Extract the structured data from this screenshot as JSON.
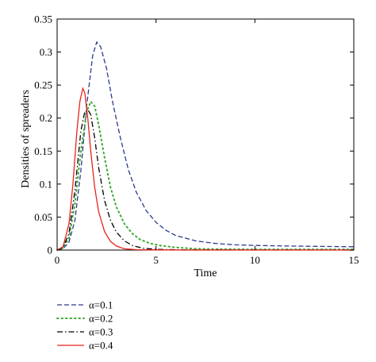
{
  "chart_data": {
    "type": "line",
    "xlabel": "Time",
    "ylabel": "Densities of spreaders",
    "xlim": [
      0,
      15
    ],
    "ylim": [
      0,
      0.35
    ],
    "xticks": [
      0,
      5,
      10,
      15
    ],
    "xtick_labels": [
      "0",
      "5",
      "10",
      "15"
    ],
    "yticks": [
      0,
      0.05,
      0.1,
      0.15,
      0.2,
      0.25,
      0.3,
      0.35
    ],
    "ytick_labels": [
      "0",
      "0.05",
      "0.1",
      "0.15",
      "0.2",
      "0.25",
      "0.3",
      "0.35"
    ],
    "grid": false,
    "legend_position": "bottom-left, below plot",
    "series": [
      {
        "name": "α=0.1",
        "color": "#2b3a8f",
        "style": "dashed",
        "x": [
          0,
          0.3,
          0.6,
          0.9,
          1.2,
          1.5,
          1.8,
          2.0,
          2.2,
          2.5,
          2.8,
          3.2,
          3.6,
          4.0,
          4.5,
          5.0,
          5.5,
          6.0,
          7.0,
          8.0,
          9.0,
          10.0,
          12.0,
          15.0
        ],
        "y": [
          0,
          0.002,
          0.012,
          0.045,
          0.12,
          0.22,
          0.295,
          0.315,
          0.308,
          0.275,
          0.225,
          0.17,
          0.122,
          0.088,
          0.06,
          0.042,
          0.03,
          0.022,
          0.014,
          0.01,
          0.008,
          0.007,
          0.006,
          0.005
        ]
      },
      {
        "name": "α=0.2",
        "color": "#3aaa35",
        "style": "dotted",
        "x": [
          0,
          0.3,
          0.6,
          0.9,
          1.2,
          1.5,
          1.7,
          1.9,
          2.1,
          2.4,
          2.7,
          3.0,
          3.4,
          3.8,
          4.2,
          4.7,
          5.2,
          6.0,
          7.0,
          8.0,
          10.0,
          12.0,
          15.0
        ],
        "y": [
          0,
          0.003,
          0.018,
          0.07,
          0.15,
          0.21,
          0.225,
          0.218,
          0.19,
          0.14,
          0.095,
          0.065,
          0.04,
          0.025,
          0.016,
          0.01,
          0.007,
          0.004,
          0.002,
          0.0015,
          0.001,
          0.001,
          0.001
        ]
      },
      {
        "name": "α=0.3",
        "color": "#000000",
        "style": "dashdot",
        "x": [
          0,
          0.3,
          0.6,
          0.9,
          1.2,
          1.4,
          1.55,
          1.7,
          1.9,
          2.1,
          2.4,
          2.7,
          3.0,
          3.4,
          3.8,
          4.3,
          5.0,
          6.0,
          8.0,
          15.0
        ],
        "y": [
          0,
          0.004,
          0.025,
          0.09,
          0.18,
          0.21,
          0.213,
          0.205,
          0.17,
          0.125,
          0.075,
          0.045,
          0.027,
          0.014,
          0.007,
          0.003,
          0.001,
          0.0005,
          0.0002,
          0.0001
        ]
      },
      {
        "name": "α=0.4",
        "color": "#e8231e",
        "style": "solid",
        "x": [
          0,
          0.3,
          0.6,
          0.8,
          1.0,
          1.15,
          1.3,
          1.4,
          1.55,
          1.7,
          1.9,
          2.1,
          2.4,
          2.7,
          3.0,
          3.4,
          4.0,
          5.0,
          7.0,
          15.0
        ],
        "y": [
          0,
          0.005,
          0.04,
          0.1,
          0.18,
          0.225,
          0.245,
          0.238,
          0.2,
          0.15,
          0.095,
          0.058,
          0.028,
          0.013,
          0.006,
          0.002,
          0.0006,
          0.0002,
          0.0001,
          0.0
        ]
      }
    ]
  }
}
